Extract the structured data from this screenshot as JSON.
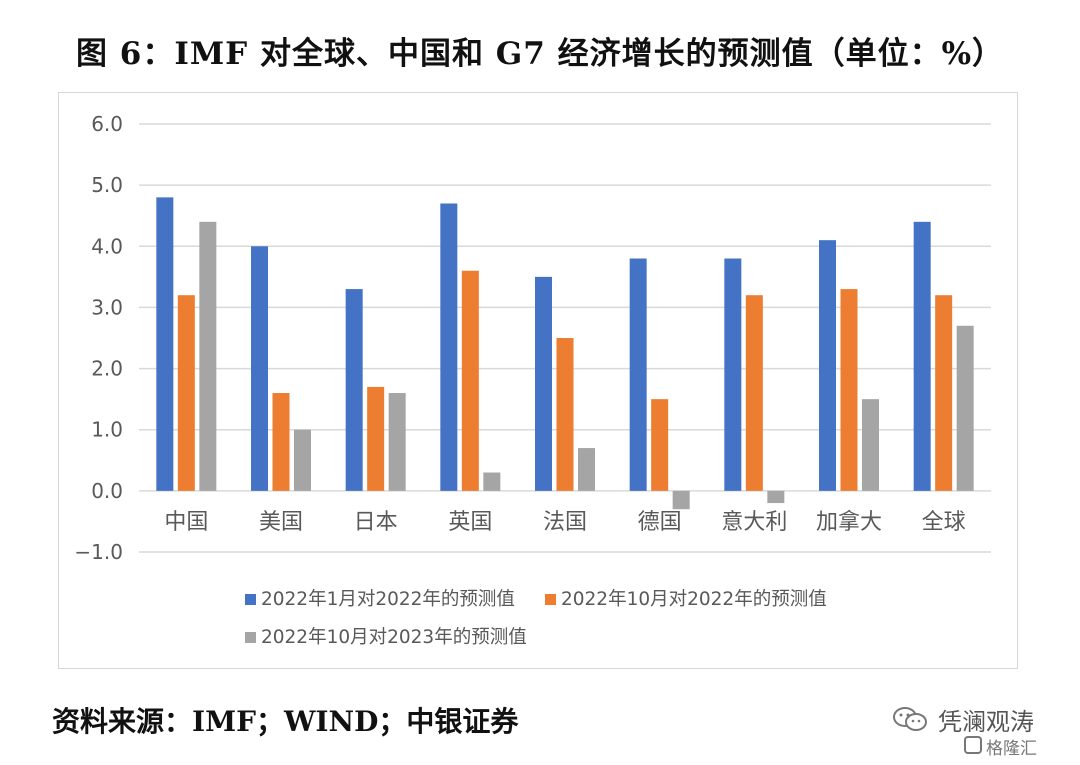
{
  "figure": {
    "title": "图 6：IMF 对全球、中国和 G7 经济增长的预测值（单位：%）",
    "source": "资料来源：IMF；WIND；中银证券"
  },
  "watermark": {
    "name": "凭澜观涛",
    "sub": "格隆汇",
    "icon": "wechat-icon"
  },
  "chart_data": {
    "type": "bar",
    "title": "",
    "xlabel": "",
    "ylabel": "",
    "ylim": [
      -1.0,
      6.0
    ],
    "yticks": [
      6.0,
      5.0,
      4.0,
      3.0,
      2.0,
      1.0,
      0.0,
      -1.0
    ],
    "ytick_labels": [
      "6.0",
      "5.0",
      "4.0",
      "3.0",
      "2.0",
      "1.0",
      "0.0",
      "−1.0"
    ],
    "grid": true,
    "legend_position": "bottom",
    "categories": [
      "中国",
      "美国",
      "日本",
      "英国",
      "法国",
      "德国",
      "意大利",
      "加拿大",
      "全球"
    ],
    "series": [
      {
        "name": "2022年1月对2022年的预测值",
        "color": "#4472c4",
        "values": [
          4.8,
          4.0,
          3.3,
          4.7,
          3.5,
          3.8,
          3.8,
          4.1,
          4.4
        ]
      },
      {
        "name": "2022年10月对2022年的预测值",
        "color": "#ed7d31",
        "values": [
          3.2,
          1.6,
          1.7,
          3.6,
          2.5,
          1.5,
          3.2,
          3.3,
          3.2
        ]
      },
      {
        "name": "2022年10月对2023年的预测值",
        "color": "#a5a5a5",
        "values": [
          4.4,
          1.0,
          1.6,
          0.3,
          0.7,
          -0.3,
          -0.2,
          1.5,
          2.7
        ]
      }
    ]
  }
}
